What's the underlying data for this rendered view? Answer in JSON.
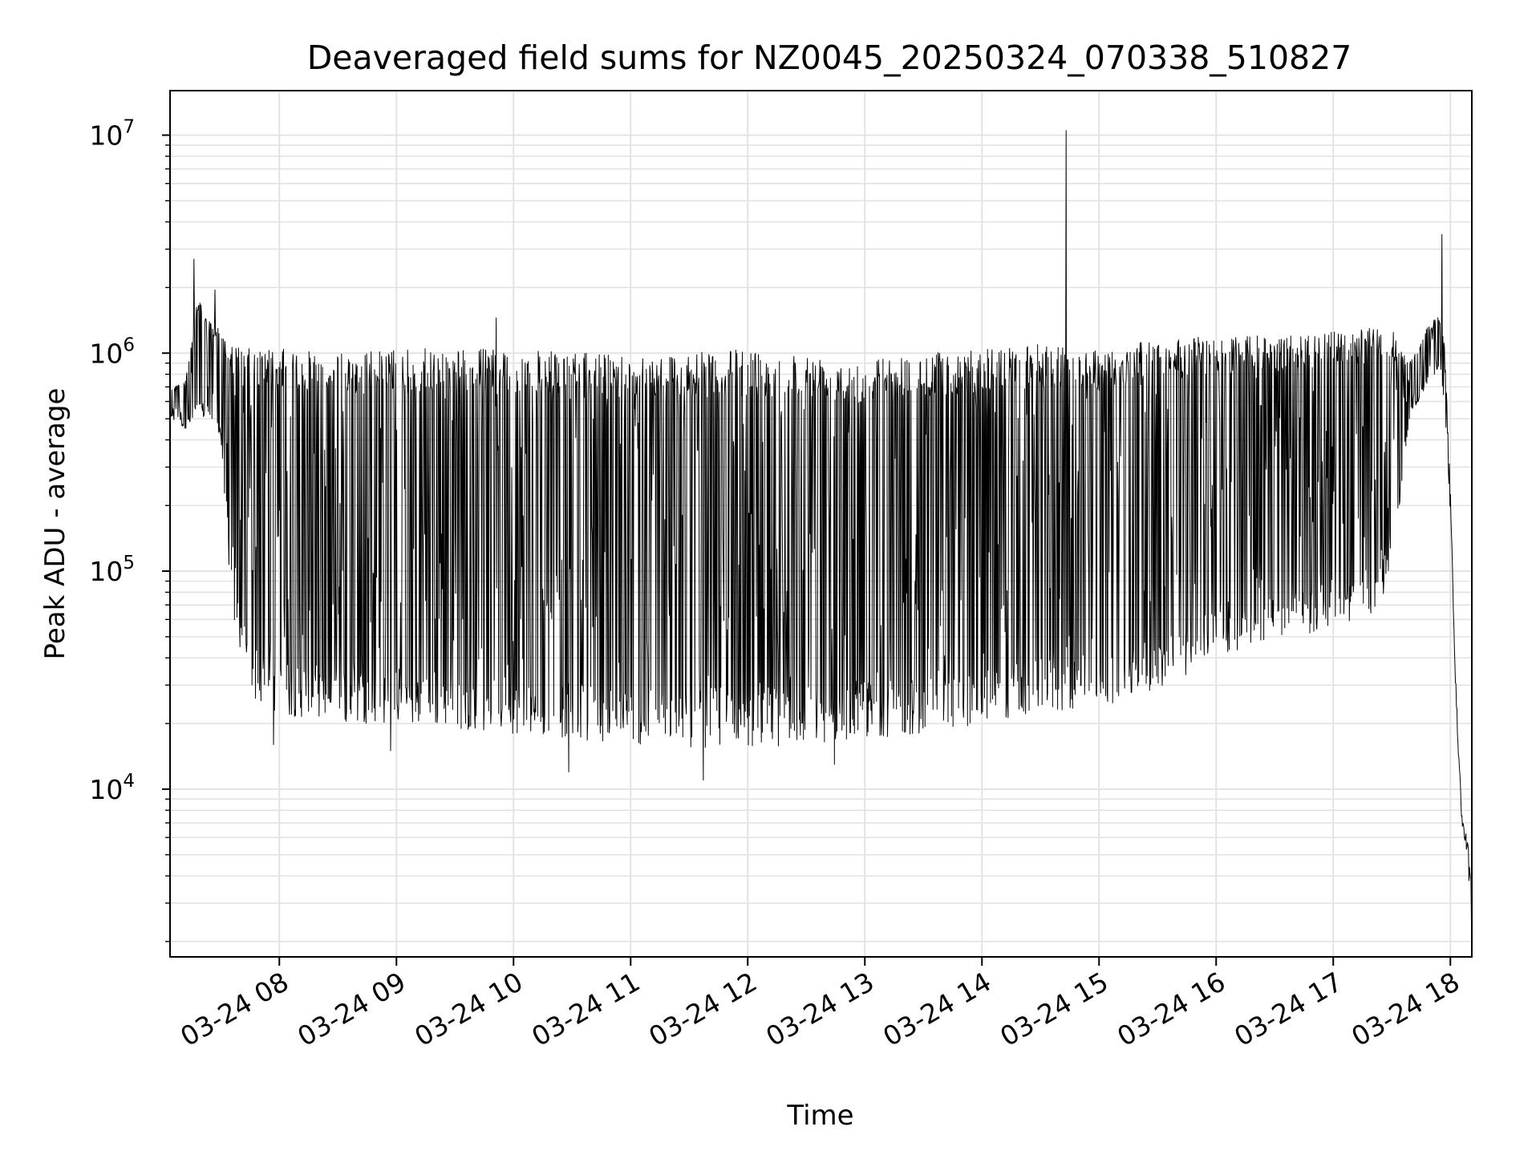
{
  "chart_data": {
    "type": "line",
    "title": "Deaveraged field sums for NZ0045_20250324_070338_510827",
    "xlabel": "Time",
    "ylabel": "Peak ADU - average",
    "yscale": "log",
    "ylim": [
      1700,
      16000000
    ],
    "xlim": [
      "03-24 07:04",
      "03-24 18:11"
    ],
    "grid": true,
    "legend": "none",
    "line_color": "#000000",
    "x_ticks": [
      "03-24 08",
      "03-24 09",
      "03-24 10",
      "03-24 11",
      "03-24 12",
      "03-24 13",
      "03-24 14",
      "03-24 15",
      "03-24 16",
      "03-24 17",
      "03-24 18"
    ],
    "x_tick_hours": [
      8,
      9,
      10,
      11,
      12,
      13,
      14,
      15,
      16,
      17,
      18
    ],
    "y_ticks": [
      {
        "base": "10",
        "exp": "4",
        "value": 10000
      },
      {
        "base": "10",
        "exp": "5",
        "value": 100000
      },
      {
        "base": "10",
        "exp": "6",
        "value": 1000000
      },
      {
        "base": "10",
        "exp": "7",
        "value": 10000000
      }
    ],
    "envelope": {
      "hours": [
        7.07,
        7.2,
        7.3,
        7.4,
        7.5,
        7.55,
        7.6,
        7.7,
        7.8,
        8.0,
        8.5,
        9.0,
        9.5,
        10.0,
        10.5,
        11.0,
        11.5,
        12.0,
        12.5,
        13.0,
        13.5,
        14.0,
        14.5,
        15.0,
        15.5,
        16.0,
        16.5,
        17.0,
        17.3,
        17.5,
        17.6,
        17.65,
        17.8,
        17.9,
        17.95,
        18.0,
        18.05,
        18.1,
        18.15,
        18.18
      ],
      "upper": [
        700000,
        750000,
        1800000,
        1400000,
        1300000,
        1200000,
        1100000,
        1050000,
        1050000,
        1050000,
        1000000,
        1050000,
        1050000,
        1050000,
        1000000,
        1000000,
        1000000,
        1050000,
        1000000,
        950000,
        1000000,
        1050000,
        1100000,
        1050000,
        1150000,
        1200000,
        1200000,
        1250000,
        1300000,
        1300000,
        1000000,
        900000,
        1300000,
        1500000,
        1100000,
        250000,
        30000,
        8000,
        6000,
        4000
      ],
      "lower": [
        500000,
        450000,
        500000,
        500000,
        400000,
        150000,
        60000,
        35000,
        25000,
        22000,
        20000,
        20000,
        19000,
        18000,
        17000,
        16000,
        15500,
        15500,
        16000,
        17000,
        18000,
        20000,
        22000,
        24000,
        28000,
        40000,
        50000,
        52000,
        58000,
        90000,
        300000,
        500000,
        700000,
        800000,
        600000,
        180000,
        20000,
        6000,
        4500,
        2500
      ]
    },
    "peaks": [
      {
        "hour": 7.27,
        "value": 2700000
      },
      {
        "hour": 7.45,
        "value": 1950000
      },
      {
        "hour": 9.85,
        "value": 1450000
      },
      {
        "hour": 14.72,
        "value": 10500000
      },
      {
        "hour": 17.93,
        "value": 3500000
      }
    ],
    "dips": [
      {
        "hour": 10.47,
        "value": 12000
      },
      {
        "hour": 11.62,
        "value": 11000
      },
      {
        "hour": 12.74,
        "value": 13000
      },
      {
        "hour": 8.95,
        "value": 15000
      },
      {
        "hour": 7.95,
        "value": 16000
      },
      {
        "hour": 18.16,
        "value": 3800
      },
      {
        "hour": 18.18,
        "value": 2400
      }
    ]
  }
}
